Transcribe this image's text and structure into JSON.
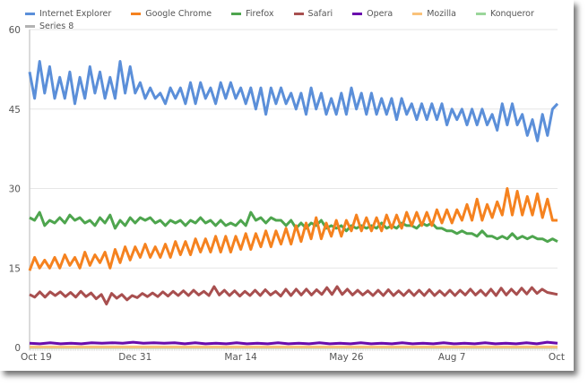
{
  "chart_data": {
    "type": "line",
    "title": "",
    "xlabel": "",
    "ylabel": "",
    "ylim": [
      0,
      60
    ],
    "y_ticks": [
      0,
      15,
      30,
      45,
      60
    ],
    "x_ticks": [
      "Oct 19",
      "Dec 31",
      "Mar 14",
      "May 26",
      "Aug 7",
      "Oct"
    ],
    "grid": true,
    "legend_placement": "top",
    "series": [
      {
        "name": "Internet Explorer",
        "color": "#5b8fd9",
        "values": [
          52,
          47,
          54,
          48,
          53,
          47,
          51,
          47,
          52,
          46,
          51,
          47,
          53,
          48,
          52,
          47,
          51,
          47,
          54,
          48,
          53,
          48,
          50,
          47,
          49,
          47,
          48,
          46,
          49,
          47,
          49,
          46,
          50,
          46,
          50,
          47,
          49,
          46,
          50,
          47,
          50,
          47,
          49,
          46,
          49,
          45,
          49,
          44,
          49,
          46,
          49,
          46,
          48,
          45,
          48,
          44,
          49,
          45,
          48,
          44,
          47,
          44,
          48,
          44,
          49,
          45,
          48,
          44,
          48,
          44,
          47,
          44,
          47,
          43,
          47,
          44,
          46,
          43,
          46,
          43,
          46,
          43,
          46,
          42,
          45,
          43,
          45,
          42,
          45,
          42,
          45,
          42,
          44,
          41,
          46,
          42,
          46,
          42,
          44,
          40,
          43,
          39,
          44,
          40,
          45,
          46
        ]
      },
      {
        "name": "Google Chrome",
        "color": "#f5821f",
        "values": [
          14.5,
          17,
          15,
          16.5,
          15,
          17,
          15,
          17.5,
          15.5,
          17,
          15,
          18,
          15.5,
          17.5,
          16,
          18,
          15,
          18.5,
          16,
          19,
          16.5,
          19,
          17,
          19.5,
          17,
          19,
          17,
          19.5,
          17,
          20,
          17.5,
          20,
          17.5,
          20.5,
          18,
          20.5,
          18,
          21,
          18,
          21,
          18,
          21,
          18.5,
          21.5,
          18.5,
          21.5,
          19,
          22,
          19,
          22,
          19.5,
          22.5,
          19.5,
          23,
          20,
          23.5,
          20.5,
          24.5,
          20.5,
          23.5,
          21,
          24,
          21,
          24,
          22,
          25,
          22,
          24.5,
          22,
          24.5,
          22,
          25,
          22.5,
          25,
          22.5,
          25.5,
          23,
          25.5,
          23,
          25.5,
          23,
          26,
          23.5,
          26,
          23.5,
          26,
          24,
          27,
          24,
          28,
          24,
          27,
          24.5,
          27.5,
          25,
          30,
          25,
          29.5,
          25,
          28.5,
          25,
          29,
          24.5,
          28,
          24,
          24
        ]
      },
      {
        "name": "Firefox",
        "color": "#4ea54e",
        "values": [
          24.5,
          24,
          25.5,
          23,
          24,
          23.5,
          24.5,
          23.5,
          25,
          24,
          24.5,
          23.5,
          24,
          23,
          24.5,
          23.5,
          25,
          22.5,
          24,
          23,
          24.5,
          23.5,
          24.5,
          24,
          24.5,
          23.5,
          24,
          23,
          24,
          23.5,
          24,
          23,
          24,
          23.5,
          24.5,
          23.5,
          24,
          23,
          24,
          23,
          23.5,
          23,
          24,
          23,
          25.5,
          24,
          24.5,
          23.5,
          24.5,
          24,
          24,
          23,
          24,
          22.5,
          23.5,
          22.5,
          23.5,
          23,
          24,
          22.5,
          23,
          22.5,
          23,
          22,
          23,
          22.5,
          23,
          22.5,
          23,
          22.5,
          23.5,
          22.5,
          23,
          22.5,
          23.5,
          23,
          23,
          22.5,
          23.5,
          23,
          23.5,
          22.5,
          22.5,
          22,
          22,
          21.5,
          22,
          21.5,
          21.5,
          21,
          22,
          21,
          21,
          20.5,
          21,
          20.5,
          21.5,
          20.5,
          21,
          20.5,
          21,
          20.5,
          20.5,
          20,
          20.5,
          20
        ]
      },
      {
        "name": "Safari",
        "color": "#a84f4f",
        "values": [
          10,
          9.5,
          10.5,
          9.5,
          10.5,
          9.8,
          10.5,
          9.6,
          10.4,
          9.5,
          10.6,
          9.6,
          10.3,
          9.2,
          10,
          8.2,
          10.2,
          9.3,
          10,
          9,
          9.8,
          9.4,
          10.2,
          9.6,
          10.3,
          9.6,
          10.5,
          9.7,
          10.6,
          9.8,
          10.7,
          9.8,
          10.8,
          9.9,
          10.6,
          9.8,
          11.5,
          9.9,
          10.8,
          9.8,
          10.7,
          9.7,
          10.6,
          9.8,
          10.8,
          9.8,
          10.9,
          9.9,
          10.6,
          9.7,
          11,
          9.8,
          11,
          9.9,
          11,
          9.9,
          10.9,
          10,
          11.3,
          10,
          11.5,
          10,
          11,
          9.9,
          10.8,
          9.9,
          10.7,
          9.8,
          10.8,
          9.8,
          10.9,
          9.8,
          10.7,
          9.8,
          10.8,
          9.8,
          10.8,
          9.8,
          10.9,
          9.8,
          10.7,
          9.8,
          10.8,
          9.8,
          10.8,
          9.9,
          11,
          9.9,
          10.8,
          9.8,
          11,
          9.8,
          11.2,
          9.9,
          11,
          10,
          11.2,
          10.1,
          11.3,
          10.2,
          11,
          10.4,
          10.2,
          10
        ]
      },
      {
        "name": "Opera",
        "color": "#6a0dad",
        "values": [
          0.8,
          0.7,
          0.9,
          0.7,
          0.8,
          0.7,
          0.9,
          0.8,
          0.9,
          0.8,
          1,
          0.8,
          0.9,
          0.8,
          0.9,
          0.7,
          0.9,
          0.7,
          0.8,
          0.7,
          0.9,
          0.7,
          0.8,
          0.7,
          0.9,
          0.7,
          0.8,
          0.7,
          0.9,
          0.7,
          0.8,
          0.7,
          0.9,
          0.7,
          0.8,
          0.7,
          0.9,
          0.7,
          0.8,
          0.7,
          0.9,
          0.7,
          0.8,
          0.7,
          0.9,
          0.7,
          0.8,
          0.7,
          0.9,
          0.7,
          1,
          0.8
        ]
      },
      {
        "name": "Mozilla",
        "color": "#f9c27a",
        "values": [
          0.1,
          0.1
        ]
      },
      {
        "name": "Konqueror",
        "color": "#9ad69a",
        "values": [
          0.05,
          0.05
        ]
      },
      {
        "name": "Series 8",
        "color": "#b3b3b3",
        "values": [
          0.02,
          0.02
        ]
      }
    ]
  }
}
